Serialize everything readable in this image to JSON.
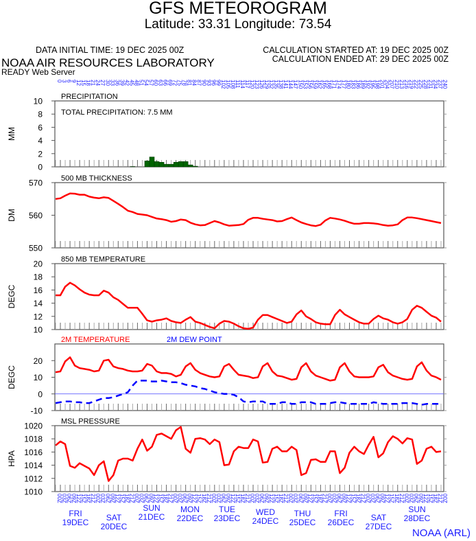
{
  "header": {
    "title": "GFS METEOROGRAM",
    "subtitle": "Latitude: 33.31 Longitude:  73.54",
    "initial_time": "DATA INITIAL TIME: 19 DEC 2025 00Z",
    "calc_started": "CALCULATION STARTED AT: 19 DEC 2025 00Z",
    "calc_ended": "CALCULATION ENDED AT: 29 DEC 2025 00Z",
    "lab": "NOAA AIR RESOURCES LABORATORY",
    "server": "READY Web Server",
    "credit": "NOAA (ARL)"
  },
  "colors": {
    "red": "#ff0000",
    "blue": "#0000ff",
    "green": "#006400",
    "axis_blue": "#1a1aff"
  },
  "chart_data": {
    "type": "line",
    "x_forecast_hours": {
      "start": 0,
      "end": 240,
      "step": 3
    },
    "hour_labels_cycle": [
      "00",
      "03",
      "06",
      "09",
      "12",
      "15",
      "18",
      "21"
    ],
    "days": [
      {
        "name": "FRI",
        "date": "19DEC"
      },
      {
        "name": "SAT",
        "date": "20DEC"
      },
      {
        "name": "SUN",
        "date": "21DEC"
      },
      {
        "name": "MON",
        "date": "22DEC"
      },
      {
        "name": "TUE",
        "date": "23DEC"
      },
      {
        "name": "WED",
        "date": "24DEC"
      },
      {
        "name": "THU",
        "date": "25DEC"
      },
      {
        "name": "FRI",
        "date": "26DEC"
      },
      {
        "name": "SAT",
        "date": "27DEC"
      },
      {
        "name": "SUN",
        "date": "28DEC"
      }
    ],
    "panels": [
      {
        "id": "precipitation",
        "title": "PRECIPITATION",
        "ylabel": "MM",
        "ylim": [
          0,
          10
        ],
        "yticks": [
          0,
          2,
          4,
          6,
          8,
          10
        ],
        "annotation": "TOTAL PRECIPITATION:   7.5 MM",
        "series": [
          {
            "name": "3-h precipitation",
            "kind": "bar",
            "color": "#006400",
            "values": [
              0,
              0,
              0,
              0,
              0,
              0,
              0,
              0,
              0,
              0,
              0,
              0,
              0,
              0,
              0,
              0,
              0.05,
              0,
              0,
              0.9,
              1.5,
              0.8,
              0.7,
              0.4,
              0.4,
              0.7,
              0.8,
              0.8,
              0.3,
              0.1,
              0,
              0,
              0,
              0,
              0,
              0,
              0,
              0,
              0,
              0,
              0,
              0,
              0,
              0,
              0,
              0,
              0,
              0,
              0,
              0,
              0,
              0,
              0,
              0,
              0,
              0,
              0,
              0,
              0,
              0,
              0,
              0,
              0,
              0,
              0,
              0,
              0,
              0,
              0,
              0,
              0,
              0,
              0,
              0,
              0,
              0,
              0,
              0,
              0,
              0,
              0
            ]
          }
        ]
      },
      {
        "id": "thickness",
        "title": "500 MB  THICKNESS",
        "ylabel": "DM",
        "ylim": [
          550,
          570
        ],
        "yticks": [
          550,
          560,
          570
        ],
        "series": [
          {
            "name": "500 MB thickness",
            "kind": "line",
            "color": "#ff0000",
            "values": [
              565,
              565.2,
              566,
              566.7,
              566.6,
              566.3,
              566.3,
              565.7,
              565.4,
              565.2,
              565.5,
              565.3,
              564.4,
              563.5,
              562.5,
              561.4,
              561,
              560.4,
              560.2,
              560,
              559.5,
              559,
              558.8,
              558.5,
              558,
              558.2,
              558.7,
              558.5,
              557.7,
              557.2,
              556.9,
              557,
              557.6,
              558.2,
              557.8,
              557.2,
              556.8,
              556.9,
              557,
              557.3,
              558.6,
              559.2,
              559.2,
              558.9,
              558.7,
              558.5,
              558.1,
              558.2,
              558.8,
              559.3,
              558.5,
              557.8,
              557.3,
              556.9,
              556.7,
              557.1,
              558.4,
              559.2,
              559,
              558.7,
              558.3,
              557.8,
              557.4,
              557.4,
              557.6,
              557.6,
              557.5,
              557.3,
              557,
              556.8,
              556.9,
              557.2,
              558.5,
              559.3,
              559.3,
              559.1,
              558.8,
              558.5,
              558.2,
              557.9,
              557.6
            ]
          }
        ]
      },
      {
        "id": "t850",
        "title": "850 MB  TEMPERATURE",
        "ylabel": "DEGC",
        "ylim": [
          10,
          20
        ],
        "yticks": [
          10,
          12,
          14,
          16,
          18,
          20
        ],
        "series": [
          {
            "name": "850 MB temperature",
            "kind": "line",
            "color": "#ff0000",
            "values": [
              15.2,
              15.2,
              16.5,
              17.1,
              16.7,
              16.1,
              15.6,
              15.3,
              15.2,
              15.2,
              15.9,
              15.6,
              14.9,
              14.5,
              13.9,
              13.3,
              13.3,
              13.3,
              12.4,
              11.4,
              11.2,
              11.4,
              11.5,
              11.7,
              11.3,
              11.1,
              11.0,
              11.5,
              11.9,
              11.2,
              11.0,
              10.7,
              10.4,
              10.2,
              10.9,
              11.3,
              11.2,
              10.9,
              10.5,
              10.2,
              10.1,
              10.3,
              11.5,
              12.2,
              12.2,
              11.9,
              11.6,
              11.3,
              11.0,
              11.2,
              12.3,
              12.9,
              12.0,
              11.6,
              11.1,
              10.9,
              10.8,
              10.8,
              12.2,
              13.0,
              12.3,
              11.9,
              11.5,
              11.1,
              10.9,
              10.9,
              11.6,
              12.1,
              11.7,
              11.5,
              11.1,
              10.9,
              11.1,
              11.6,
              13.0,
              13.6,
              13.3,
              12.7,
              12.1,
              11.8,
              11.2
            ]
          }
        ]
      },
      {
        "id": "t2m",
        "title": "",
        "ylabel": "DEGC",
        "ylim": [
          -10,
          30
        ],
        "yticks": [
          -10,
          0,
          10,
          20
        ],
        "series": [
          {
            "name": "2M TEMPERATURE",
            "kind": "line",
            "color": "#ff0000",
            "values": [
              13,
              13.5,
              19.5,
              22,
              17,
              15.5,
              15,
              14.5,
              13.5,
              14,
              20,
              20.5,
              16.5,
              15.5,
              15,
              14,
              13.5,
              13.5,
              14,
              18,
              17,
              13.5,
              12.5,
              12.5,
              12,
              10.5,
              11.5,
              16.5,
              18.5,
              14.5,
              12.5,
              11.5,
              10.5,
              10,
              10.5,
              16.5,
              18,
              14.5,
              11.5,
              11,
              10.5,
              9.5,
              10,
              16.5,
              18.5,
              13.5,
              11,
              10.5,
              9.5,
              8.5,
              9,
              16,
              18.5,
              13.5,
              11,
              10,
              9,
              8,
              8.5,
              16,
              18.5,
              13.5,
              10.5,
              10,
              10,
              10,
              10.5,
              16,
              17.5,
              13,
              11,
              10,
              9,
              8.5,
              9,
              16.5,
              19,
              14,
              11,
              10,
              8.5
            ]
          },
          {
            "name": "2M   DEW POINT",
            "kind": "dashed",
            "color": "#0000ff",
            "values": [
              -5.5,
              -5,
              -4.5,
              -4.5,
              -5,
              -5,
              -5.5,
              -5.5,
              -4.5,
              -3.5,
              -2.5,
              -2.5,
              -2,
              -1,
              0,
              1,
              5,
              8,
              8,
              8,
              7.5,
              7.5,
              8,
              7.5,
              7,
              7,
              6.5,
              5.5,
              5,
              4.5,
              3.5,
              3,
              2,
              1,
              0.5,
              0,
              0,
              -0.5,
              -2,
              -4.5,
              -5,
              -4.5,
              -4.5,
              -4.5,
              -6,
              -6,
              -6,
              -5,
              -5,
              -6,
              -6,
              -5,
              -5,
              -5,
              -6,
              -6,
              -6,
              -5.5,
              -5,
              -5,
              -5.5,
              -6,
              -6,
              -6,
              -6,
              -6,
              -5,
              -5.5,
              -6,
              -6,
              -6,
              -6,
              -5.5,
              -5.5,
              -5.5,
              -6,
              -6.5,
              -6,
              -6,
              -6,
              -6
            ]
          }
        ]
      },
      {
        "id": "pressure",
        "title": "MSL PRESSURE",
        "ylabel": "HPA",
        "ylim": [
          1010,
          1020
        ],
        "yticks": [
          1010,
          1012,
          1014,
          1016,
          1018,
          1020
        ],
        "series": [
          {
            "name": "MSL pressure",
            "kind": "line",
            "color": "#ff0000",
            "values": [
              1017.0,
              1017.6,
              1017.2,
              1013.9,
              1013.6,
              1014.3,
              1013.9,
              1013.5,
              1012.5,
              1014.0,
              1014.6,
              1011.6,
              1012.5,
              1014.7,
              1015.0,
              1015.0,
              1014.7,
              1016.5,
              1017.9,
              1016.2,
              1016.8,
              1018.6,
              1018.8,
              1018.4,
              1018.0,
              1019.3,
              1019.8,
              1016.5,
              1015.9,
              1018.0,
              1018.1,
              1017.9,
              1017.2,
              1017.9,
              1017.5,
              1014.0,
              1014.1,
              1016.1,
              1016.8,
              1016.6,
              1016.6,
              1017.9,
              1017.6,
              1014.4,
              1014.5,
              1016.5,
              1016.8,
              1016.1,
              1016.1,
              1016.8,
              1016.3,
              1012.5,
              1012.8,
              1014.8,
              1014.9,
              1014.5,
              1014.5,
              1016.1,
              1016.1,
              1012.8,
              1013.6,
              1015.9,
              1016.8,
              1016.1,
              1015.7,
              1017.1,
              1018.3,
              1015.2,
              1015.8,
              1017.5,
              1018.4,
              1018.0,
              1017.3,
              1018.1,
              1017.9,
              1014.2,
              1014.7,
              1016.5,
              1016.8,
              1016.0,
              1016.1
            ]
          }
        ]
      }
    ]
  }
}
